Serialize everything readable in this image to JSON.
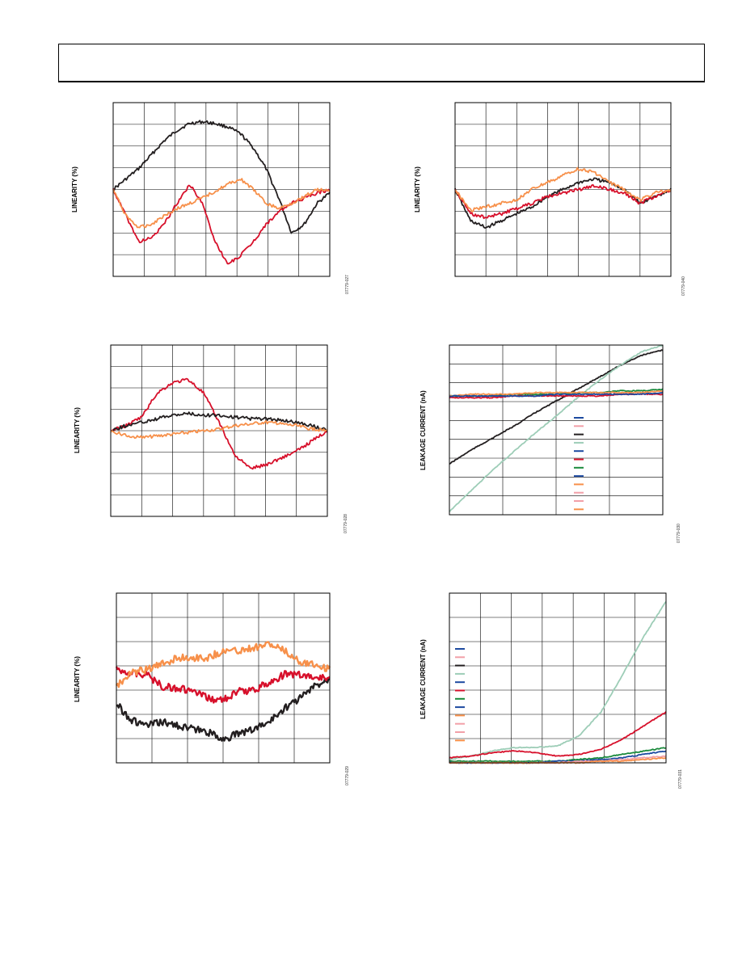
{
  "page": {
    "header_title": "",
    "colors": {
      "black": "#231f20",
      "red": "#d7102b",
      "orange": "#f7904a",
      "teal": "#9dcdb7",
      "green": "#1a8a3c",
      "blue": "#1d4aa0",
      "pink": "#f2a0a8",
      "grid": "#000000"
    }
  },
  "figures": [
    {
      "ylabel": "LINEARITY (%)",
      "figure_id": "07779-027",
      "chart_data": {
        "type": "line",
        "xlabel": "",
        "ylabel": "LINEARITY (%)",
        "grid": true,
        "series": [
          {
            "color": "black",
            "values": [
              0.5,
              0.56,
              0.62,
              0.7,
              0.78,
              0.84,
              0.88,
              0.89,
              0.88,
              0.86,
              0.82,
              0.74,
              0.62,
              0.45,
              0.25,
              0.3,
              0.42,
              0.48
            ]
          },
          {
            "color": "red",
            "values": [
              0.5,
              0.35,
              0.2,
              0.22,
              0.3,
              0.42,
              0.53,
              0.42,
              0.2,
              0.07,
              0.12,
              0.2,
              0.3,
              0.37,
              0.42,
              0.45,
              0.48,
              0.5
            ]
          },
          {
            "color": "orange",
            "values": [
              0.5,
              0.35,
              0.28,
              0.3,
              0.35,
              0.39,
              0.42,
              0.45,
              0.49,
              0.53,
              0.56,
              0.5,
              0.42,
              0.39,
              0.42,
              0.46,
              0.5,
              0.49
            ]
          }
        ]
      }
    },
    {
      "ylabel": "LINEARITY (%)",
      "figure_id": "07779-040",
      "chart_data": {
        "type": "line",
        "xlabel": "",
        "ylabel": "LINEARITY (%)",
        "grid": true,
        "series": [
          {
            "color": "black",
            "values": [
              0.5,
              0.32,
              0.28,
              0.32,
              0.36,
              0.4,
              0.46,
              0.5,
              0.54,
              0.56,
              0.54,
              0.5,
              0.42,
              0.46,
              0.5
            ]
          },
          {
            "color": "red",
            "values": [
              0.5,
              0.36,
              0.34,
              0.36,
              0.39,
              0.42,
              0.46,
              0.48,
              0.5,
              0.52,
              0.5,
              0.48,
              0.42,
              0.46,
              0.5
            ]
          },
          {
            "color": "orange",
            "values": [
              0.5,
              0.38,
              0.4,
              0.42,
              0.44,
              0.5,
              0.54,
              0.58,
              0.62,
              0.6,
              0.54,
              0.5,
              0.44,
              0.48,
              0.5
            ]
          }
        ]
      }
    },
    {
      "ylabel": "LINEARITY (%)",
      "figure_id": "07779-028",
      "chart_data": {
        "type": "line",
        "xlabel": "",
        "ylabel": "LINEARITY (%)",
        "grid": true,
        "series": [
          {
            "color": "red",
            "values": [
              0.5,
              0.53,
              0.58,
              0.72,
              0.78,
              0.8,
              0.72,
              0.55,
              0.36,
              0.28,
              0.3,
              0.34,
              0.38,
              0.44,
              0.5
            ]
          },
          {
            "color": "black",
            "values": [
              0.5,
              0.53,
              0.55,
              0.57,
              0.59,
              0.6,
              0.59,
              0.59,
              0.58,
              0.57,
              0.57,
              0.56,
              0.55,
              0.53,
              0.5
            ]
          },
          {
            "color": "orange",
            "values": [
              0.5,
              0.47,
              0.46,
              0.47,
              0.48,
              0.49,
              0.5,
              0.51,
              0.53,
              0.54,
              0.55,
              0.54,
              0.53,
              0.51,
              0.5
            ]
          }
        ]
      }
    },
    {
      "ylabel": "LEAKAGE CURRENT (nA)",
      "figure_id": "07779-030",
      "legend_rows": 12,
      "chart_data": {
        "type": "line",
        "xlabel": "",
        "ylabel": "LEAKAGE CURRENT (nA)",
        "grid": true,
        "series": [
          {
            "color": "black",
            "values": [
              0.3,
              0.38,
              0.45,
              0.52,
              0.6,
              0.67,
              0.74,
              0.81,
              0.88,
              0.94,
              0.97
            ]
          },
          {
            "color": "teal",
            "values": [
              0.02,
              0.14,
              0.26,
              0.37,
              0.48,
              0.58,
              0.69,
              0.79,
              0.88,
              0.96,
              1.0
            ]
          },
          {
            "color": "green",
            "values": [
              0.7,
              0.7,
              0.7,
              0.71,
              0.71,
              0.71,
              0.72,
              0.72,
              0.73,
              0.73,
              0.74
            ]
          },
          {
            "color": "orange",
            "values": [
              0.7,
              0.71,
              0.71,
              0.71,
              0.72,
              0.72,
              0.72,
              0.72,
              0.72,
              0.72,
              0.73
            ]
          },
          {
            "color": "red",
            "values": [
              0.69,
              0.69,
              0.69,
              0.7,
              0.7,
              0.7,
              0.7,
              0.7,
              0.71,
              0.71,
              0.71
            ]
          },
          {
            "color": "blue",
            "values": [
              0.7,
              0.7,
              0.7,
              0.7,
              0.7,
              0.71,
              0.71,
              0.71,
              0.71,
              0.71,
              0.72
            ]
          }
        ]
      }
    },
    {
      "ylabel": "LINEARITY (%)",
      "figure_id": "07779-029",
      "chart_data": {
        "type": "line",
        "xlabel": "",
        "ylabel": "LINEARITY (%)",
        "grid": true,
        "series": [
          {
            "color": "black",
            "values": [
              0.35,
              0.25,
              0.22,
              0.24,
              0.22,
              0.2,
              0.18,
              0.14,
              0.17,
              0.2,
              0.24,
              0.32,
              0.38,
              0.45,
              0.5
            ]
          },
          {
            "color": "red",
            "values": [
              0.55,
              0.53,
              0.52,
              0.45,
              0.44,
              0.42,
              0.38,
              0.37,
              0.42,
              0.43,
              0.47,
              0.52,
              0.52,
              0.5,
              0.5
            ]
          },
          {
            "color": "orange",
            "values": [
              0.45,
              0.53,
              0.55,
              0.58,
              0.62,
              0.62,
              0.62,
              0.66,
              0.66,
              0.68,
              0.7,
              0.66,
              0.6,
              0.58,
              0.55
            ]
          }
        ]
      }
    },
    {
      "ylabel": "LEAKAGE CURRENT (nA)",
      "figure_id": "07779-031",
      "legend_rows": 12,
      "chart_data": {
        "type": "line",
        "xlabel": "",
        "ylabel": "LEAKAGE CURRENT (nA)",
        "grid": true,
        "series": [
          {
            "color": "teal",
            "values": [
              0.02,
              0.04,
              0.07,
              0.09,
              0.09,
              0.1,
              0.16,
              0.3,
              0.52,
              0.75,
              0.95
            ]
          },
          {
            "color": "red",
            "values": [
              0.03,
              0.04,
              0.06,
              0.07,
              0.06,
              0.04,
              0.05,
              0.08,
              0.14,
              0.22,
              0.3
            ]
          },
          {
            "color": "green",
            "values": [
              0.01,
              0.01,
              0.01,
              0.01,
              0.01,
              0.01,
              0.02,
              0.03,
              0.05,
              0.07,
              0.09
            ]
          },
          {
            "color": "blue",
            "values": [
              0.0,
              0.0,
              0.0,
              0.0,
              0.0,
              0.01,
              0.01,
              0.02,
              0.03,
              0.05,
              0.07
            ]
          },
          {
            "color": "pink",
            "values": [
              0.0,
              0.0,
              0.0,
              0.0,
              0.0,
              0.0,
              0.01,
              0.01,
              0.02,
              0.03,
              0.04
            ]
          },
          {
            "color": "orange",
            "values": [
              0.0,
              0.0,
              0.0,
              0.0,
              0.0,
              0.0,
              0.0,
              0.01,
              0.01,
              0.02,
              0.03
            ]
          }
        ]
      }
    }
  ]
}
